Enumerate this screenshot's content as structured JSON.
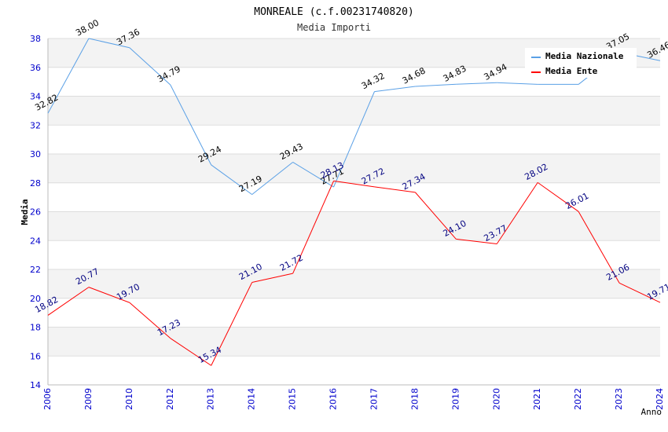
{
  "chart_data": {
    "type": "line",
    "title": "MONREALE (c.f.00231740820)",
    "subtitle": "Media Importi",
    "xlabel": "Anno",
    "ylabel": "Media",
    "ylim": [
      14,
      38
    ],
    "y_ticks": [
      "14",
      "16",
      "18",
      "20",
      "22",
      "24",
      "26",
      "28",
      "30",
      "32",
      "34",
      "36",
      "38"
    ],
    "categories": [
      "2006",
      "2009",
      "2010",
      "2012",
      "2013",
      "2014",
      "2015",
      "2016",
      "2017",
      "2018",
      "2019",
      "2020",
      "2021",
      "2022",
      "2023",
      "2024"
    ],
    "legend_position": "top-right",
    "series": [
      {
        "name": "Media Nazionale",
        "color": "#5aa0e6",
        "label_color": "#000000",
        "values": [
          32.82,
          38.0,
          37.36,
          34.79,
          29.24,
          27.19,
          29.43,
          27.71,
          34.32,
          34.68,
          34.83,
          34.94,
          34.82,
          34.82,
          37.05,
          36.46
        ],
        "labels": [
          "32.82",
          "38.00",
          "37.36",
          "34.79",
          "29.24",
          "27.19",
          "29.43",
          "27.71",
          "34.32",
          "34.68",
          "34.83",
          "34.94",
          "",
          "",
          "37.05",
          "36.46"
        ]
      },
      {
        "name": "Media Ente",
        "color": "#ff0000",
        "label_color": "#000080",
        "values": [
          18.82,
          20.77,
          19.7,
          17.23,
          15.34,
          21.1,
          21.72,
          28.13,
          27.72,
          27.34,
          24.1,
          23.77,
          28.02,
          26.01,
          21.06,
          19.71
        ],
        "labels": [
          "18.82",
          "20.77",
          "19.70",
          "17.23",
          "15.34",
          "21.10",
          "21.72",
          "28.13",
          "27.72",
          "27.34",
          "24.10",
          "23.77",
          "28.02",
          "26.01",
          "21.06",
          "19.71"
        ]
      }
    ]
  }
}
